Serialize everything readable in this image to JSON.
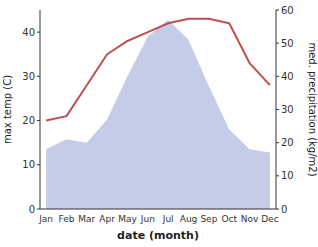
{
  "chart_data": {
    "type": "line",
    "categories": [
      "Jan",
      "Feb",
      "Mar",
      "Apr",
      "May",
      "Jun",
      "Jul",
      "Aug",
      "Sep",
      "Oct",
      "Nov",
      "Dec"
    ],
    "series": [
      {
        "type": "area",
        "axis": "y2",
        "color": "#c5cce8",
        "values": [
          18,
          21,
          20,
          27,
          40,
          52,
          57,
          51,
          37,
          24,
          18,
          17
        ]
      },
      {
        "type": "line",
        "color": "#c0504d",
        "values": [
          20,
          21,
          28,
          35,
          38,
          40,
          42,
          43,
          43,
          42,
          33,
          28
        ]
      }
    ],
    "xlabel": "date (month)",
    "ylabel": "max temp (C)",
    "y2label": "med. precipitation (kg/m2)",
    "ylim": [
      0,
      45
    ],
    "yticks": [
      0,
      10,
      20,
      30,
      40
    ],
    "y2lim": [
      0,
      60
    ],
    "y2ticks": [
      0,
      10,
      20,
      30,
      40,
      50,
      60
    ],
    "grid": false
  }
}
